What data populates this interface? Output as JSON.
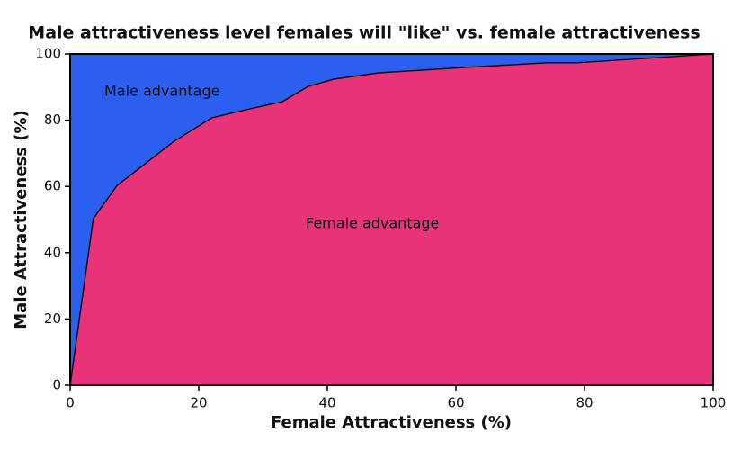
{
  "chart_data": {
    "type": "area",
    "title": "Male attractiveness level females will \"like\" vs. female attractiveness",
    "x_label": "Female Attractiveness (%)",
    "y_label": "Male Attractiveness (%)",
    "annotations": [
      "Male advantage",
      "Female advantage"
    ],
    "x": [
      0,
      3.6,
      7.3,
      11.5,
      16,
      22,
      27,
      33,
      37,
      41,
      48,
      62,
      74,
      78.6,
      100
    ],
    "values": [
      0,
      50.3,
      60.3,
      66.6,
      73.4,
      80.7,
      83,
      85.6,
      90.2,
      92.4,
      94.3,
      96,
      97.3,
      97.3,
      100
    ],
    "color_below": "#e8337a",
    "color_above": "#2a5ff0",
    "xlim": [
      0,
      100
    ],
    "xticks": [
      0,
      20,
      40,
      60,
      80,
      100
    ],
    "ylim": [
      0,
      100
    ],
    "yticks": [
      0,
      20,
      40,
      60,
      80,
      100
    ]
  }
}
